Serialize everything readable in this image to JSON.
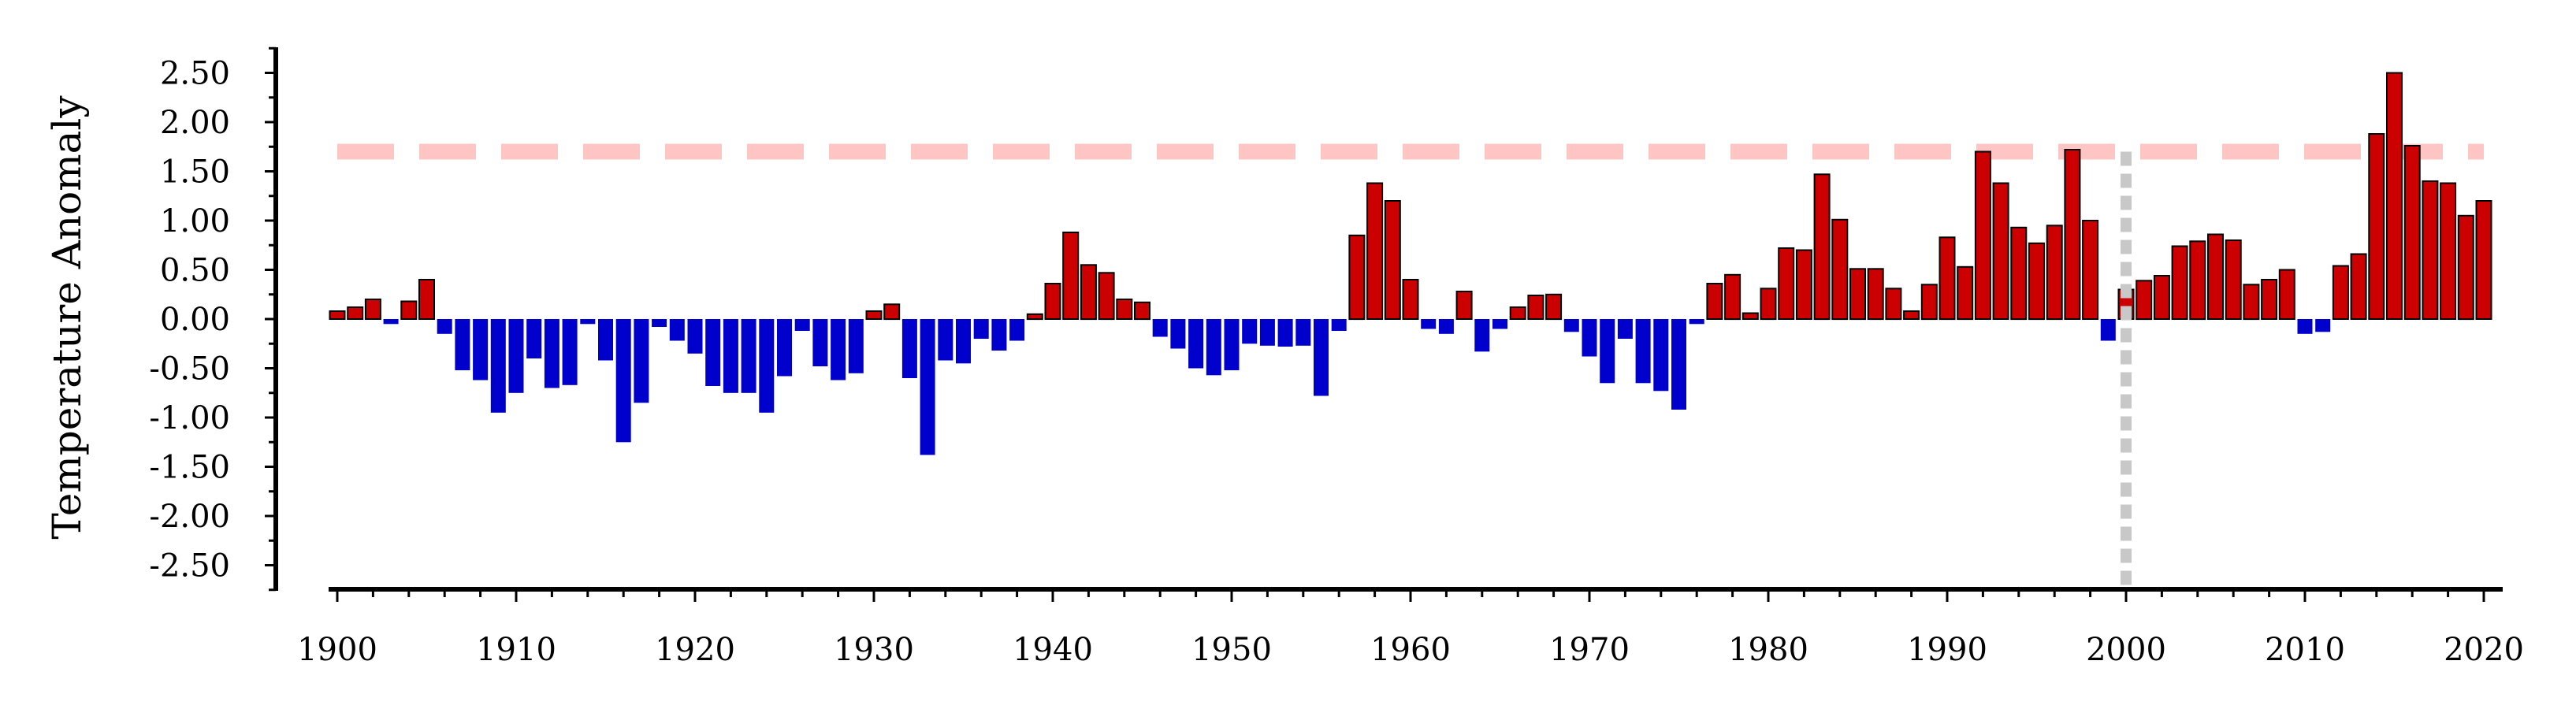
{
  "chart_data": {
    "type": "bar",
    "ylabel": "Temperature Anomaly",
    "xlabel": "",
    "title": "",
    "xlim": [
      1899,
      2021
    ],
    "ylim": [
      -2.75,
      2.75
    ],
    "x_ticks": [
      1900,
      1910,
      1920,
      1930,
      1940,
      1950,
      1960,
      1970,
      1980,
      1990,
      2000,
      2010,
      2020
    ],
    "y_ticks": [
      2.5,
      2.0,
      1.5,
      1.0,
      0.5,
      0.0,
      -0.5,
      -1.0,
      -1.5,
      -2.0,
      -2.5
    ],
    "y_tick_labels": [
      "2.50",
      "2.00",
      "1.50",
      "1.00",
      "0.50",
      "0.00",
      "-0.50",
      "-1.00",
      "-1.50",
      "-2.00",
      "-2.50"
    ],
    "grid": false,
    "colors": {
      "positive": "#cc0000",
      "negative": "#0000cc",
      "bar_edge": "#000000",
      "threshold_line": "#ffc4c4",
      "reference_line": "#c8c8c8"
    },
    "threshold_y": 1.7,
    "reference_x": 2000,
    "years": [
      1900,
      1901,
      1902,
      1903,
      1904,
      1905,
      1906,
      1907,
      1908,
      1909,
      1910,
      1911,
      1912,
      1913,
      1914,
      1915,
      1916,
      1917,
      1918,
      1919,
      1920,
      1921,
      1922,
      1923,
      1924,
      1925,
      1926,
      1927,
      1928,
      1929,
      1930,
      1931,
      1932,
      1933,
      1934,
      1935,
      1936,
      1937,
      1938,
      1939,
      1940,
      1941,
      1942,
      1943,
      1944,
      1945,
      1946,
      1947,
      1948,
      1949,
      1950,
      1951,
      1952,
      1953,
      1954,
      1955,
      1956,
      1957,
      1958,
      1959,
      1960,
      1961,
      1962,
      1963,
      1964,
      1965,
      1966,
      1967,
      1968,
      1969,
      1970,
      1971,
      1972,
      1973,
      1974,
      1975,
      1976,
      1977,
      1978,
      1979,
      1980,
      1981,
      1982,
      1983,
      1984,
      1985,
      1986,
      1987,
      1988,
      1989,
      1990,
      1991,
      1992,
      1993,
      1994,
      1995,
      1996,
      1997,
      1998,
      1999,
      2000,
      2001,
      2002,
      2003,
      2004,
      2005,
      2006,
      2007,
      2008,
      2009,
      2010,
      2011,
      2012,
      2013,
      2014,
      2015,
      2016,
      2017,
      2018,
      2019,
      2020
    ],
    "values": [
      0.08,
      0.12,
      0.2,
      -0.05,
      0.18,
      0.4,
      -0.15,
      -0.52,
      -0.62,
      -0.95,
      -0.75,
      -0.4,
      -0.7,
      -0.67,
      -0.05,
      -0.42,
      -1.25,
      -0.85,
      -0.08,
      -0.22,
      -0.35,
      -0.68,
      -0.75,
      -0.75,
      -0.95,
      -0.58,
      -0.12,
      -0.48,
      -0.62,
      -0.55,
      0.08,
      0.15,
      -0.6,
      -1.38,
      -0.42,
      -0.45,
      -0.2,
      -0.32,
      -0.22,
      0.05,
      0.36,
      0.88,
      0.55,
      0.47,
      0.2,
      0.17,
      -0.18,
      -0.3,
      -0.5,
      -0.57,
      -0.52,
      -0.25,
      -0.27,
      -0.28,
      -0.27,
      -0.78,
      -0.12,
      0.85,
      1.38,
      1.2,
      0.4,
      -0.1,
      -0.15,
      0.28,
      -0.33,
      -0.1,
      0.12,
      0.24,
      0.25,
      -0.13,
      -0.38,
      -0.65,
      -0.2,
      -0.65,
      -0.73,
      -0.92,
      -0.05,
      0.36,
      0.45,
      0.06,
      0.31,
      0.72,
      0.7,
      1.47,
      1.01,
      0.51,
      0.51,
      0.31,
      0.08,
      0.35,
      0.83,
      0.53,
      1.7,
      1.38,
      0.93,
      0.77,
      0.95,
      1.72,
      1.0,
      -0.22,
      0.3,
      0.39,
      0.44,
      0.74,
      0.79,
      0.86,
      0.8,
      0.35,
      0.4,
      0.5,
      -0.15,
      -0.13,
      0.54,
      0.66,
      1.88,
      2.5,
      1.76,
      1.4,
      1.38,
      1.05,
      1.2
    ]
  }
}
